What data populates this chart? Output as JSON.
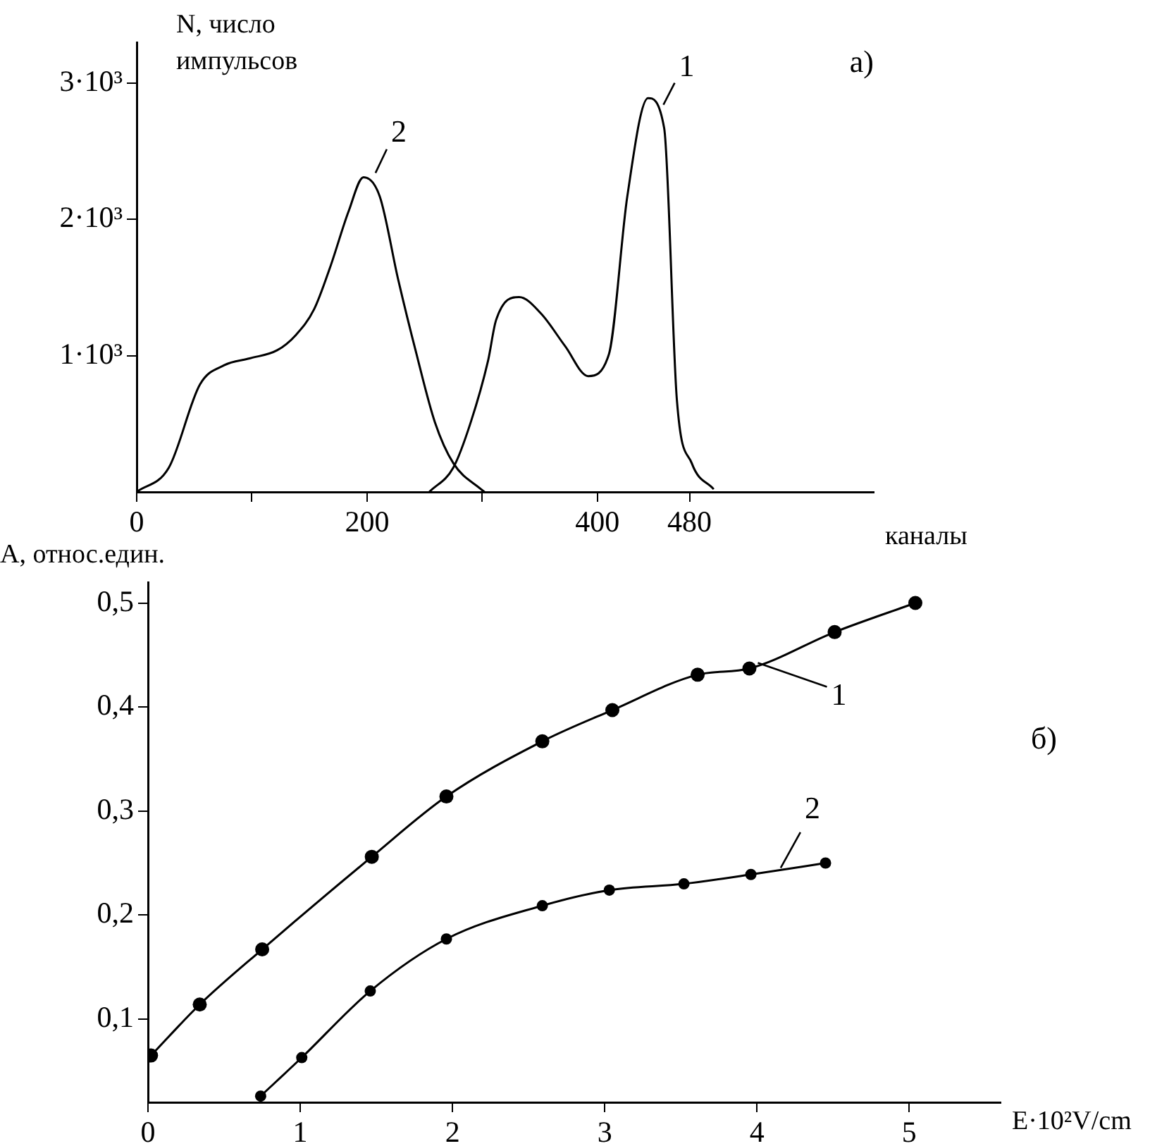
{
  "chart_data": [
    {
      "type": "line",
      "xlabel": "каналы",
      "ylabel": "N, число импульсов",
      "annotations": [
        "а)",
        {
          "text": "2",
          "x": 200,
          "y": 2300
        },
        {
          "text": "1",
          "x": 450,
          "y": 2800
        }
      ],
      "xlim": [
        0,
        640
      ],
      "ylim": [
        0,
        3300
      ],
      "xticks": [
        0,
        {
          "value": 100,
          "label": null
        },
        200,
        {
          "value": 300,
          "label": null
        },
        400,
        480
      ],
      "yticks": [
        {
          "value": 1000,
          "label": "1·10³"
        },
        {
          "value": 2000,
          "label": "2·10³"
        },
        {
          "value": 3000,
          "label": "3·10³"
        }
      ],
      "grid": false,
      "legend": false,
      "marker": "none",
      "line_style": "solid",
      "series": [
        {
          "color": "#000000",
          "x": [
            0,
            28,
            55,
            76,
            98,
            122,
            138,
            154,
            168,
            184,
            197,
            211,
            227,
            243,
            259,
            275,
            299,
            302
          ],
          "values": [
            0,
            180,
            790,
            930,
            980,
            1040,
            1150,
            1340,
            1650,
            2060,
            2310,
            2170,
            1560,
            1010,
            510,
            210,
            20,
            0
          ]
        },
        {
          "color": "#000000",
          "x": [
            254,
            275,
            290,
            305,
            312,
            332,
            351,
            372,
            392,
            410,
            426,
            444,
            458,
            469,
            482,
            501
          ],
          "values": [
            0,
            180,
            510,
            960,
            1260,
            1430,
            1310,
            1070,
            850,
            1010,
            2170,
            2890,
            2670,
            680,
            210,
            20
          ]
        }
      ]
    },
    {
      "type": "line",
      "xlabel": "E·10²V/cm",
      "ylabel": "А, относ.един.",
      "annotations": [
        "б)",
        {
          "text": "1",
          "x": 3.95,
          "y": 0.437
        },
        {
          "text": "2",
          "x": 4.1,
          "y": 0.24
        }
      ],
      "xlim": [
        0,
        5.6
      ],
      "ylim": [
        0.02,
        0.52
      ],
      "xticks": [
        0,
        1,
        2,
        3,
        4,
        5
      ],
      "yticks": [
        {
          "value": 0.1,
          "label": "0,1"
        },
        {
          "value": 0.2,
          "label": "0,2"
        },
        {
          "value": 0.3,
          "label": "0,3"
        },
        {
          "value": 0.4,
          "label": "0,4"
        },
        {
          "value": 0.5,
          "label": "0,5"
        }
      ],
      "grid": false,
      "legend": false,
      "marker": "circle",
      "line_style": "solid",
      "series": [
        {
          "color": "#000000",
          "x": [
            0.02,
            0.34,
            0.75,
            1.47,
            1.96,
            2.59,
            3.05,
            3.61,
            3.95,
            4.51,
            5.04
          ],
          "values": [
            0.065,
            0.114,
            0.167,
            0.256,
            0.314,
            0.367,
            0.397,
            0.431,
            0.437,
            0.472,
            0.5
          ]
        },
        {
          "color": "#000000",
          "x": [
            0.74,
            1.01,
            1.46,
            1.96,
            2.59,
            3.03,
            3.52,
            3.96,
            4.45
          ],
          "values": [
            0.026,
            0.063,
            0.127,
            0.177,
            0.209,
            0.224,
            0.23,
            0.239,
            0.25
          ]
        }
      ]
    }
  ]
}
